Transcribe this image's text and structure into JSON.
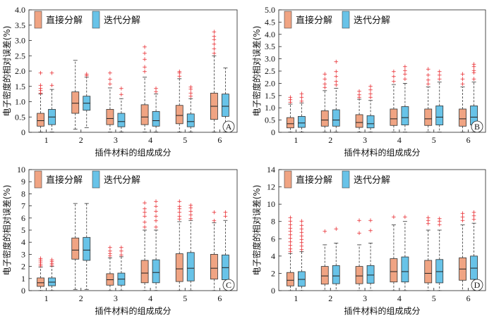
{
  "colors": {
    "direct": "#f0a483",
    "iterative": "#68c3e8",
    "outlier": "#e8262b"
  },
  "legend": {
    "direct": "直接分解",
    "iterative": "迭代分解"
  },
  "xlabel": "插件材料的组成成分",
  "ylabel": "电子密度的相对误差(%)",
  "chart_data": [
    {
      "type": "box",
      "panel_label": "A",
      "ylim": [
        0,
        4
      ],
      "yticks": [
        "0",
        "0.5",
        "1.0",
        "1.5",
        "2.0",
        "2.5",
        "3.0",
        "3.5",
        "4.0"
      ],
      "categories": [
        "1",
        "2",
        "3",
        "4",
        "5",
        "6"
      ],
      "series": [
        {
          "name": "直接分解",
          "boxes": [
            {
              "min": 0.01,
              "q1": 0.2,
              "median": 0.38,
              "q3": 0.62,
              "max": 1.25,
              "outliers": [
                1.3,
                1.38,
                1.45,
                1.55,
                1.95
              ]
            },
            {
              "min": 0.1,
              "q1": 0.62,
              "median": 0.95,
              "q3": 1.32,
              "max": 2.35,
              "outliers": []
            },
            {
              "min": 0.01,
              "q1": 0.25,
              "median": 0.45,
              "q3": 0.75,
              "max": 1.45,
              "outliers": [
                1.6,
                1.75,
                1.95
              ]
            },
            {
              "min": 0.01,
              "q1": 0.25,
              "median": 0.5,
              "q3": 0.9,
              "max": 1.8,
              "outliers": [
                2.0,
                2.15,
                2.4,
                2.6,
                2.8
              ]
            },
            {
              "min": 0.01,
              "q1": 0.28,
              "median": 0.55,
              "q3": 0.88,
              "max": 1.75,
              "outliers": [
                1.85,
                1.95,
                2.0
              ]
            },
            {
              "min": 0.01,
              "q1": 0.42,
              "median": 0.85,
              "q3": 1.28,
              "max": 2.5,
              "outliers": [
                2.6,
                2.75,
                2.9,
                3.05,
                3.15,
                3.3
              ]
            }
          ]
        },
        {
          "name": "迭代分解",
          "boxes": [
            {
              "min": 0.01,
              "q1": 0.25,
              "median": 0.5,
              "q3": 0.75,
              "max": 1.4,
              "outliers": [
                1.55,
                1.95
              ]
            },
            {
              "min": 0.15,
              "q1": 0.72,
              "median": 0.95,
              "q3": 1.18,
              "max": 1.8,
              "outliers": [
                1.87,
                1.92
              ]
            },
            {
              "min": 0.01,
              "q1": 0.18,
              "median": 0.35,
              "q3": 0.62,
              "max": 1.1,
              "outliers": [
                1.25,
                1.45
              ]
            },
            {
              "min": 0.01,
              "q1": 0.2,
              "median": 0.38,
              "q3": 0.68,
              "max": 1.25,
              "outliers": [
                1.35,
                1.45
              ]
            },
            {
              "min": 0.01,
              "q1": 0.18,
              "median": 0.35,
              "q3": 0.6,
              "max": 1.1,
              "outliers": [
                1.2,
                1.3,
                1.42,
                1.5
              ]
            },
            {
              "min": 0.01,
              "q1": 0.52,
              "median": 0.85,
              "q3": 1.25,
              "max": 2.1,
              "outliers": []
            }
          ]
        }
      ]
    },
    {
      "type": "box",
      "panel_label": "B",
      "ylim": [
        0,
        5
      ],
      "yticks": [
        "0",
        "0.5",
        "1.0",
        "1.5",
        "2.0",
        "2.5",
        "3.0",
        "3.5",
        "4.0",
        "4.5",
        "5.0"
      ],
      "categories": [
        "1",
        "2",
        "3",
        "4",
        "5",
        "6"
      ],
      "series": [
        {
          "name": "直接分解",
          "boxes": [
            {
              "min": 0.01,
              "q1": 0.18,
              "median": 0.35,
              "q3": 0.6,
              "max": 1.15,
              "outliers": [
                1.25,
                1.35,
                1.45
              ]
            },
            {
              "min": 0.01,
              "q1": 0.25,
              "median": 0.5,
              "q3": 0.88,
              "max": 1.7,
              "outliers": [
                1.85,
                2.0,
                2.2,
                2.4
              ]
            },
            {
              "min": 0.01,
              "q1": 0.2,
              "median": 0.4,
              "q3": 0.72,
              "max": 1.35,
              "outliers": [
                1.45,
                1.55,
                1.7
              ]
            },
            {
              "min": 0.01,
              "q1": 0.28,
              "median": 0.55,
              "q3": 0.95,
              "max": 1.95,
              "outliers": [
                2.1,
                2.3,
                2.5
              ]
            },
            {
              "min": 0.01,
              "q1": 0.28,
              "median": 0.55,
              "q3": 0.95,
              "max": 1.85,
              "outliers": [
                2.0,
                2.15,
                2.35,
                2.6
              ]
            },
            {
              "min": 0.01,
              "q1": 0.25,
              "median": 0.55,
              "q3": 0.95,
              "max": 1.85,
              "outliers": [
                2.0,
                2.2,
                2.4
              ]
            }
          ]
        },
        {
          "name": "迭代分解",
          "boxes": [
            {
              "min": 0.01,
              "q1": 0.2,
              "median": 0.38,
              "q3": 0.65,
              "max": 1.2,
              "outliers": [
                1.3,
                1.45,
                1.6
              ]
            },
            {
              "min": 0.01,
              "q1": 0.25,
              "median": 0.5,
              "q3": 0.92,
              "max": 1.8,
              "outliers": [
                1.95,
                2.1,
                2.3,
                2.5,
                2.9
              ]
            },
            {
              "min": 0.01,
              "q1": 0.18,
              "median": 0.35,
              "q3": 0.68,
              "max": 1.3,
              "outliers": [
                1.45,
                1.6,
                1.75,
                1.9
              ]
            },
            {
              "min": 0.01,
              "q1": 0.3,
              "median": 0.6,
              "q3": 1.05,
              "max": 2.0,
              "outliers": [
                2.2,
                2.4,
                2.55,
                2.7
              ]
            },
            {
              "min": 0.01,
              "q1": 0.3,
              "median": 0.62,
              "q3": 1.08,
              "max": 2.05,
              "outliers": [
                2.2,
                2.35,
                2.5
              ]
            },
            {
              "min": 0.01,
              "q1": 0.3,
              "median": 0.62,
              "q3": 1.08,
              "max": 2.05,
              "outliers": [
                2.2,
                2.45,
                2.55,
                2.7,
                2.8
              ]
            }
          ]
        }
      ]
    },
    {
      "type": "box",
      "panel_label": "C",
      "ylim": [
        0,
        10
      ],
      "yticks": [
        "0",
        "1",
        "2",
        "3",
        "4",
        "5",
        "6",
        "7",
        "8",
        "9",
        "10"
      ],
      "categories": [
        "1",
        "2",
        "3",
        "4",
        "5",
        "6"
      ],
      "series": [
        {
          "name": "直接分解",
          "boxes": [
            {
              "min": 0.01,
              "q1": 0.35,
              "median": 0.65,
              "q3": 1.05,
              "max": 1.95,
              "outliers": [
                2.1,
                2.25,
                2.4,
                2.55,
                2.7
              ]
            },
            {
              "min": 0.1,
              "q1": 2.6,
              "median": 3.35,
              "q3": 4.35,
              "max": 7.2,
              "outliers": []
            },
            {
              "min": 0.01,
              "q1": 0.45,
              "median": 0.9,
              "q3": 1.4,
              "max": 2.7,
              "outliers": [
                2.9,
                3.1,
                3.3,
                3.6
              ]
            },
            {
              "min": 0.01,
              "q1": 0.65,
              "median": 1.45,
              "q3": 2.5,
              "max": 5.0,
              "outliers": [
                5.3,
                5.7,
                6.2,
                6.5,
                6.8,
                7.3
              ]
            },
            {
              "min": 0.01,
              "q1": 0.75,
              "median": 1.8,
              "q3": 3.05,
              "max": 5.7,
              "outliers": [
                5.95,
                6.2,
                6.5,
                6.8,
                7.0,
                7.4
              ]
            },
            {
              "min": 0.01,
              "q1": 0.95,
              "median": 1.85,
              "q3": 3.0,
              "max": 5.6,
              "outliers": [
                5.8,
                6.5
              ]
            }
          ]
        },
        {
          "name": "迭代分解",
          "boxes": [
            {
              "min": 0.01,
              "q1": 0.4,
              "median": 0.7,
              "q3": 1.05,
              "max": 2.0,
              "outliers": [
                2.15,
                2.3,
                2.45,
                2.6
              ]
            },
            {
              "min": 0.1,
              "q1": 2.5,
              "median": 3.35,
              "q3": 4.4,
              "max": 7.2,
              "outliers": []
            },
            {
              "min": 0.01,
              "q1": 0.45,
              "median": 0.95,
              "q3": 1.45,
              "max": 2.8,
              "outliers": [
                3.0,
                3.3,
                3.6
              ]
            },
            {
              "min": 0.01,
              "q1": 0.65,
              "median": 1.5,
              "q3": 2.55,
              "max": 5.0,
              "outliers": [
                5.3,
                5.8,
                6.2,
                6.6,
                7.0,
                7.4
              ]
            },
            {
              "min": 0.01,
              "q1": 0.8,
              "median": 1.85,
              "q3": 3.15,
              "max": 5.8,
              "outliers": [
                6.0,
                6.3,
                6.6,
                6.9,
                7.1
              ]
            },
            {
              "min": 0.01,
              "q1": 0.9,
              "median": 1.9,
              "q3": 2.95,
              "max": 5.8,
              "outliers": [
                6.2,
                6.5
              ]
            }
          ]
        }
      ]
    },
    {
      "type": "box",
      "panel_label": "D",
      "ylim": [
        0,
        14
      ],
      "yticks": [
        "0",
        "2",
        "4",
        "6",
        "8",
        "10",
        "12",
        "14"
      ],
      "categories": [
        "1",
        "2",
        "3",
        "4",
        "5",
        "6"
      ],
      "series": [
        {
          "name": "直接分解",
          "boxes": [
            {
              "min": 0.01,
              "q1": 0.55,
              "median": 1.2,
              "q3": 2.1,
              "max": 4.3,
              "outliers": [
                4.6,
                4.9,
                5.3,
                5.7,
                6.1,
                6.5,
                6.9,
                7.3,
                7.7,
                8.1,
                8.5
              ]
            },
            {
              "min": 0.01,
              "q1": 0.75,
              "median": 1.7,
              "q3": 2.8,
              "max": 5.3,
              "outliers": [
                6.9
              ]
            },
            {
              "min": 0.01,
              "q1": 0.8,
              "median": 1.7,
              "q3": 2.8,
              "max": 5.3,
              "outliers": [
                6.7,
                8.2
              ]
            },
            {
              "min": 0.01,
              "q1": 1.0,
              "median": 2.2,
              "q3": 3.7,
              "max": 7.6,
              "outliers": [
                8.6
              ]
            },
            {
              "min": 0.01,
              "q1": 0.9,
              "median": 2.0,
              "q3": 3.5,
              "max": 7.0,
              "outliers": [
                7.8,
                8.2,
                8.5
              ]
            },
            {
              "min": 0.01,
              "q1": 1.2,
              "median": 2.5,
              "q3": 3.8,
              "max": 7.6,
              "outliers": [
                8.2,
                8.6,
                9.0
              ]
            }
          ]
        },
        {
          "name": "迭代分解",
          "boxes": [
            {
              "min": 0.01,
              "q1": 0.5,
              "median": 1.3,
              "q3": 2.2,
              "max": 4.5,
              "outliers": [
                4.8,
                5.2,
                5.6,
                6.0,
                6.4,
                6.8,
                7.2,
                7.6,
                8.1
              ]
            },
            {
              "min": 0.01,
              "q1": 0.8,
              "median": 1.7,
              "q3": 2.9,
              "max": 5.5,
              "outliers": [
                7.2
              ]
            },
            {
              "min": 0.01,
              "q1": 0.85,
              "median": 1.8,
              "q3": 2.9,
              "max": 5.5,
              "outliers": [
                7.0,
                8.2
              ]
            },
            {
              "min": 0.01,
              "q1": 1.0,
              "median": 2.2,
              "q3": 3.9,
              "max": 8.0,
              "outliers": [
                8.6
              ]
            },
            {
              "min": 0.01,
              "q1": 0.9,
              "median": 2.2,
              "q3": 3.6,
              "max": 7.0,
              "outliers": [
                7.7,
                8.1,
                8.4
              ]
            },
            {
              "min": 0.01,
              "q1": 1.3,
              "median": 2.6,
              "q3": 4.0,
              "max": 7.8,
              "outliers": [
                8.3,
                8.7,
                9.1
              ]
            }
          ]
        }
      ]
    }
  ]
}
